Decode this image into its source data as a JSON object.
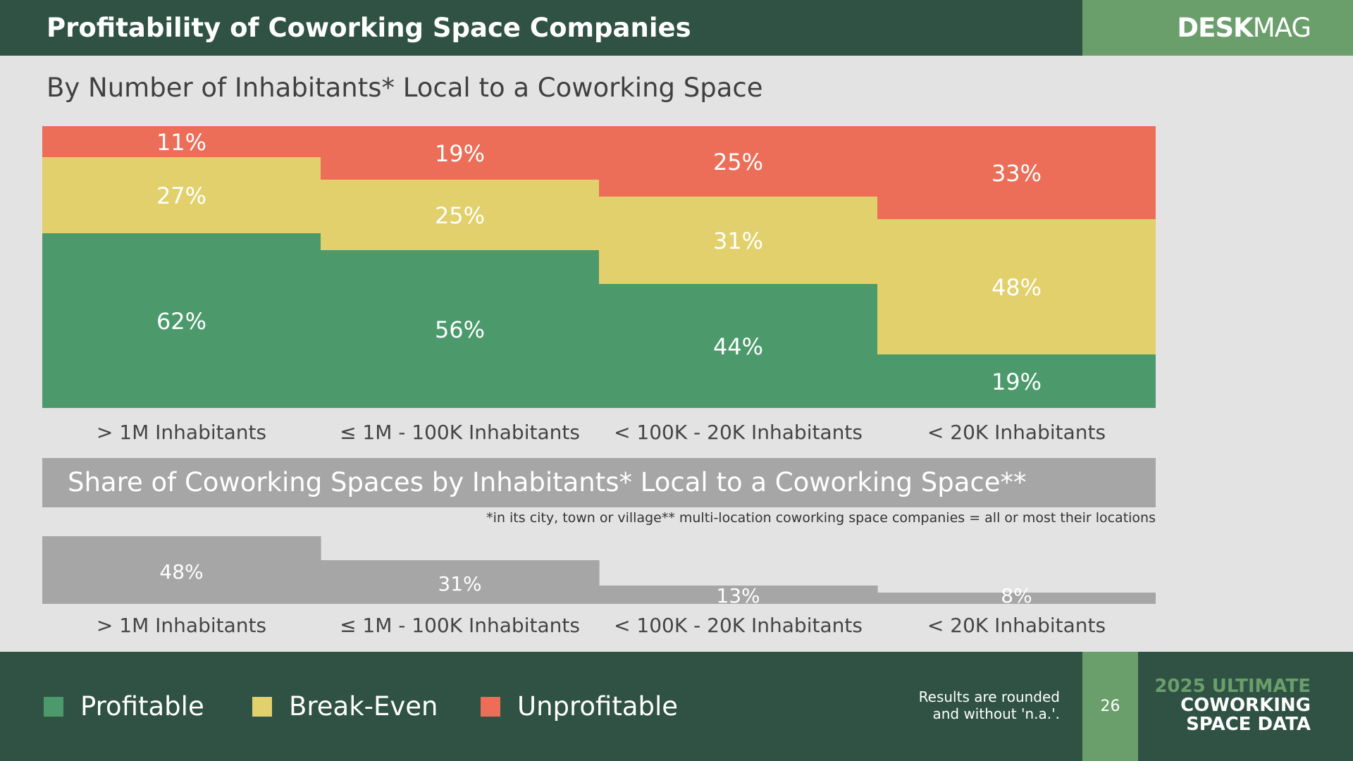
{
  "header": {
    "title": "Profitability of Coworking Space Companies",
    "brand_bold": "DESK",
    "brand_light": "MAG"
  },
  "subtitle": "By Number of Inhabitants* Local to a Coworking Space",
  "colors": {
    "profitable": "#4c9a6c",
    "break_even": "#e1d06c",
    "unprofitable": "#ec6e58",
    "share": "#a6a6a6",
    "header_bg": "#2f5244",
    "brand_green": "#6a9e6a"
  },
  "chart_data": [
    {
      "type": "bar",
      "stacked": true,
      "title": "By Number of Inhabitants* Local to a Coworking Space",
      "categories": [
        "> 1M Inhabitants",
        "≤ 1M - 100K Inhabitants",
        "< 100K - 20K Inhabitants",
        "< 20K Inhabitants"
      ],
      "series": [
        {
          "name": "Profitable",
          "values": [
            62,
            56,
            44,
            19
          ],
          "labels": [
            "62%",
            "56%",
            "44%",
            "19%"
          ]
        },
        {
          "name": "Break-Even",
          "values": [
            27,
            25,
            31,
            48
          ],
          "labels": [
            "27%",
            "25%",
            "31%",
            "48%"
          ]
        },
        {
          "name": "Unprofitable",
          "values": [
            11,
            19,
            25,
            33
          ],
          "labels": [
            "11%",
            "19%",
            "25%",
            "33%"
          ]
        }
      ],
      "ylim": [
        0,
        100
      ]
    },
    {
      "type": "bar",
      "title": "Share of Coworking Spaces by Inhabitants* Local to a Coworking Space**",
      "categories": [
        "> 1M Inhabitants",
        "≤ 1M - 100K Inhabitants",
        "< 100K - 20K Inhabitants",
        "< 20K Inhabitants"
      ],
      "values": [
        48,
        31,
        13,
        8
      ],
      "labels": [
        "48%",
        "31%",
        "13%",
        "8%"
      ],
      "ylim": [
        0,
        50
      ]
    }
  ],
  "footnote": "*in its city, town or village** multi-location coworking space companies = all or most their locations",
  "legend": [
    {
      "label": "Profitable"
    },
    {
      "label": "Break-Even"
    },
    {
      "label": "Unprofitable"
    }
  ],
  "footer": {
    "note_line1": "Results are rounded",
    "note_line2": "and without 'n.a.'.",
    "page": "26",
    "edition_line1": "2025 ULTIMATE",
    "edition_line2": "COWORKING",
    "edition_line3": "SPACE DATA"
  }
}
